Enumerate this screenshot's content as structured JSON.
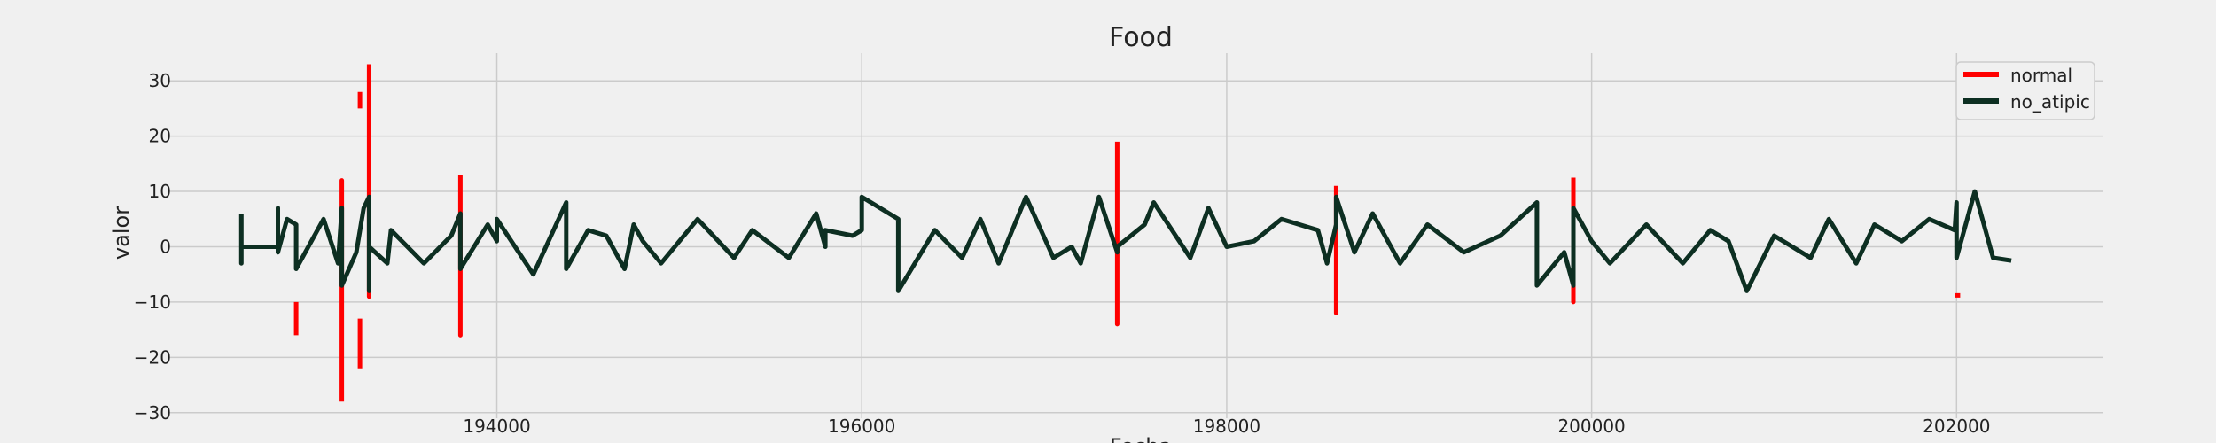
{
  "chart_data": {
    "type": "line",
    "title": "Food",
    "xlabel": "Fecha",
    "ylabel": "valor",
    "xlim": [
      192200,
      202800
    ],
    "ylim": [
      -31,
      35
    ],
    "xticks": [
      194000,
      196000,
      198000,
      200000,
      202000
    ],
    "yticks": [
      -30,
      -20,
      -10,
      0,
      10,
      20,
      30
    ],
    "grid": true,
    "legend_position": "top-right",
    "series": [
      {
        "name": "normal",
        "color": "#ff0000",
        "style": "line",
        "x": [
          192900,
          192900,
          null,
          193150,
          193150,
          193150,
          193150,
          null,
          193250,
          193250,
          null,
          193250,
          193250,
          null,
          193300,
          193300,
          193300,
          null,
          193800,
          193800,
          193800,
          null,
          197400,
          197400,
          197400,
          null,
          198600,
          198600,
          198600,
          null,
          199900,
          199900,
          199900,
          null,
          201990,
          202020
        ],
        "y": [
          -10,
          -16,
          null,
          -28,
          12,
          -12,
          11,
          null,
          28,
          25,
          null,
          -13,
          -22,
          null,
          33,
          -9,
          33,
          null,
          13,
          -16,
          13,
          null,
          19,
          -14,
          19,
          null,
          11,
          -12,
          11,
          null,
          12.5,
          -10,
          12.5,
          null,
          -8.8,
          -8.8
        ]
      },
      {
        "name": "no_atipic",
        "color": "#0d2f22",
        "style": "line",
        "x": [
          192600,
          192600,
          192600,
          192800,
          192800,
          192800,
          192850,
          192900,
          192900,
          193050,
          193130,
          193150,
          193150,
          193230,
          193270,
          193300,
          193300,
          193300,
          193400,
          193420,
          193420,
          193600,
          193750,
          193800,
          193800,
          193950,
          194000,
          194000,
          194200,
          194380,
          194380,
          194500,
          194600,
          194700,
          194750,
          194800,
          194900,
          195100,
          195300,
          195400,
          195600,
          195750,
          195800,
          195800,
          195950,
          196000,
          196000,
          196200,
          196200,
          196400,
          196550,
          196650,
          196750,
          196900,
          197050,
          197150,
          197200,
          197300,
          197400,
          197400,
          197550,
          197600,
          197800,
          197900,
          198000,
          198150,
          198300,
          198500,
          198550,
          198600,
          198600,
          198700,
          198800,
          198950,
          199100,
          199300,
          199500,
          199700,
          199700,
          199850,
          199900,
          199900,
          200000,
          200100,
          200300,
          200500,
          200650,
          200750,
          200850,
          201000,
          201200,
          201300,
          201450,
          201550,
          201700,
          201850,
          201990,
          202000,
          202000,
          202100,
          202200,
          202300
        ],
        "y": [
          6,
          -3,
          0,
          0,
          7,
          -1,
          5,
          4,
          -4,
          5,
          -3,
          7,
          -7,
          -1,
          7,
          9,
          -8,
          0,
          -3,
          3,
          3,
          -3,
          2,
          6,
          -4,
          4,
          1,
          5,
          -5,
          8,
          -4,
          3,
          2,
          -4,
          4,
          1,
          -3,
          5,
          -2,
          3,
          -2,
          6,
          0,
          3,
          2,
          3,
          9,
          5,
          -8,
          3,
          -2,
          5,
          -3,
          9,
          -2,
          0,
          -3,
          9,
          -1,
          0,
          4,
          8,
          -2,
          7,
          0,
          1,
          5,
          3,
          -3,
          4,
          9,
          -1,
          6,
          -3,
          4,
          -1,
          2,
          8,
          -7,
          -1,
          -7,
          7,
          1,
          -3,
          4,
          -3,
          3,
          1,
          -8,
          2,
          -2,
          5,
          -3,
          4,
          1,
          5,
          3,
          8,
          -2,
          10,
          -2,
          -2.5
        ]
      }
    ]
  }
}
